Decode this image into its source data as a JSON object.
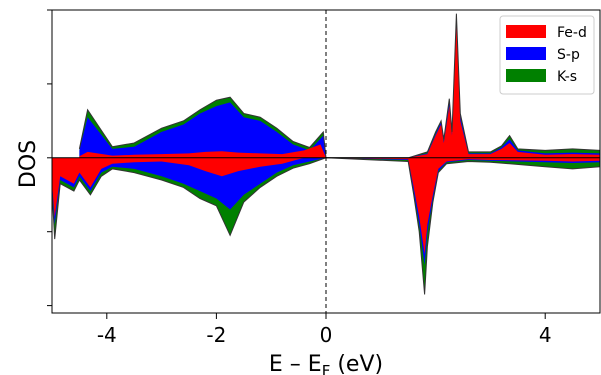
{
  "chart_data": {
    "type": "area",
    "xlabel": "E – E",
    "xlabel_sub": "F",
    "xlabel_unit": " (eV)",
    "ylabel": "DOS",
    "xlim": [
      -5,
      5
    ],
    "ylim": [
      -2.1,
      2.0
    ],
    "x_ticks": [
      -4,
      -2,
      0,
      4
    ],
    "x_tick_labels": [
      "-4",
      "-2",
      "0",
      "4"
    ],
    "y_ticks": [
      -2,
      -1,
      0,
      1,
      2
    ],
    "fermi_line_x": 0,
    "legend_position": "top-right",
    "colors": {
      "total": "#008000",
      "sp": "#0000ff",
      "fed": "#ff0000",
      "outline": "#333333"
    },
    "series": [
      {
        "name": "Fe-d",
        "color": "#ff0000",
        "up": [
          [
            -4.5,
            0.02
          ],
          [
            -4.35,
            0.08
          ],
          [
            -3.9,
            0.03
          ],
          [
            -3.5,
            0.04
          ],
          [
            -3.0,
            0.05
          ],
          [
            -2.5,
            0.06
          ],
          [
            -2.2,
            0.08
          ],
          [
            -1.9,
            0.09
          ],
          [
            -1.6,
            0.07
          ],
          [
            -1.2,
            0.06
          ],
          [
            -0.8,
            0.05
          ],
          [
            -0.4,
            0.1
          ],
          [
            -0.1,
            0.18
          ],
          [
            0.0,
            0.0
          ],
          [
            1.5,
            0.0
          ],
          [
            1.85,
            0.05
          ],
          [
            2.0,
            0.3
          ],
          [
            2.1,
            0.45
          ],
          [
            2.15,
            0.2
          ],
          [
            2.25,
            0.7
          ],
          [
            2.3,
            0.3
          ],
          [
            2.38,
            1.85
          ],
          [
            2.45,
            0.5
          ],
          [
            2.6,
            0.05
          ],
          [
            3.0,
            0.05
          ],
          [
            3.2,
            0.12
          ],
          [
            3.35,
            0.2
          ],
          [
            3.5,
            0.08
          ],
          [
            4.0,
            0.04
          ],
          [
            4.5,
            0.05
          ],
          [
            5.0,
            0.04
          ]
        ],
        "down": [
          [
            -5.0,
            -0.35
          ],
          [
            -4.95,
            -0.8
          ],
          [
            -4.85,
            -0.25
          ],
          [
            -4.6,
            -0.35
          ],
          [
            -4.5,
            -0.2
          ],
          [
            -4.3,
            -0.4
          ],
          [
            -4.1,
            -0.15
          ],
          [
            -3.9,
            -0.08
          ],
          [
            -3.5,
            -0.06
          ],
          [
            -3.0,
            -0.05
          ],
          [
            -2.5,
            -0.1
          ],
          [
            -2.2,
            -0.18
          ],
          [
            -1.9,
            -0.25
          ],
          [
            -1.6,
            -0.18
          ],
          [
            -1.2,
            -0.12
          ],
          [
            -0.8,
            -0.08
          ],
          [
            -0.4,
            0.0
          ],
          [
            0.0,
            0.0
          ],
          [
            1.5,
            -0.02
          ],
          [
            1.6,
            -0.4
          ],
          [
            1.7,
            -0.8
          ],
          [
            1.8,
            -1.3
          ],
          [
            1.85,
            -0.9
          ],
          [
            1.95,
            -0.5
          ],
          [
            2.05,
            -0.15
          ],
          [
            2.2,
            -0.05
          ],
          [
            2.6,
            -0.02
          ],
          [
            3.0,
            -0.03
          ],
          [
            4.0,
            -0.04
          ],
          [
            4.5,
            -0.05
          ],
          [
            5.0,
            -0.04
          ]
        ]
      },
      {
        "name": "S-p",
        "color": "#0000ff",
        "up": [
          [
            -4.5,
            0.1
          ],
          [
            -4.35,
            0.55
          ],
          [
            -3.9,
            0.12
          ],
          [
            -3.5,
            0.15
          ],
          [
            -3.0,
            0.35
          ],
          [
            -2.6,
            0.45
          ],
          [
            -2.3,
            0.6
          ],
          [
            -2.0,
            0.7
          ],
          [
            -1.75,
            0.75
          ],
          [
            -1.5,
            0.55
          ],
          [
            -1.2,
            0.5
          ],
          [
            -0.9,
            0.35
          ],
          [
            -0.6,
            0.18
          ],
          [
            -0.3,
            0.1
          ],
          [
            -0.05,
            0.3
          ],
          [
            0.0,
            0.0
          ],
          [
            1.5,
            0.0
          ],
          [
            1.85,
            0.06
          ],
          [
            2.0,
            0.32
          ],
          [
            2.1,
            0.48
          ],
          [
            2.15,
            0.22
          ],
          [
            2.25,
            0.75
          ],
          [
            2.3,
            0.32
          ],
          [
            2.38,
            1.9
          ],
          [
            2.45,
            0.55
          ],
          [
            2.6,
            0.06
          ],
          [
            3.0,
            0.06
          ],
          [
            3.2,
            0.14
          ],
          [
            3.35,
            0.25
          ],
          [
            3.5,
            0.1
          ],
          [
            4.0,
            0.06
          ],
          [
            4.5,
            0.07
          ],
          [
            5.0,
            0.06
          ]
        ],
        "down": [
          [
            -5.0,
            -0.4
          ],
          [
            -4.95,
            -0.9
          ],
          [
            -4.85,
            -0.3
          ],
          [
            -4.6,
            -0.4
          ],
          [
            -4.5,
            -0.25
          ],
          [
            -4.3,
            -0.45
          ],
          [
            -4.1,
            -0.2
          ],
          [
            -3.9,
            -0.12
          ],
          [
            -3.5,
            -0.15
          ],
          [
            -3.0,
            -0.25
          ],
          [
            -2.6,
            -0.35
          ],
          [
            -2.3,
            -0.45
          ],
          [
            -2.0,
            -0.55
          ],
          [
            -1.75,
            -0.7
          ],
          [
            -1.5,
            -0.5
          ],
          [
            -1.2,
            -0.35
          ],
          [
            -0.9,
            -0.2
          ],
          [
            -0.6,
            -0.1
          ],
          [
            -0.3,
            -0.05
          ],
          [
            0.0,
            0.0
          ],
          [
            1.5,
            -0.03
          ],
          [
            1.6,
            -0.45
          ],
          [
            1.7,
            -0.9
          ],
          [
            1.8,
            -1.45
          ],
          [
            1.85,
            -1.0
          ],
          [
            1.95,
            -0.55
          ],
          [
            2.05,
            -0.18
          ],
          [
            2.2,
            -0.06
          ],
          [
            2.6,
            -0.03
          ],
          [
            3.0,
            -0.04
          ],
          [
            4.0,
            -0.06
          ],
          [
            4.5,
            -0.07
          ],
          [
            5.0,
            -0.06
          ]
        ]
      },
      {
        "name": "K-s",
        "color": "#008000",
        "up": [
          [
            -4.5,
            0.12
          ],
          [
            -4.35,
            0.65
          ],
          [
            -3.9,
            0.15
          ],
          [
            -3.5,
            0.2
          ],
          [
            -3.0,
            0.4
          ],
          [
            -2.6,
            0.5
          ],
          [
            -2.3,
            0.65
          ],
          [
            -2.0,
            0.78
          ],
          [
            -1.75,
            0.82
          ],
          [
            -1.5,
            0.6
          ],
          [
            -1.2,
            0.55
          ],
          [
            -0.9,
            0.4
          ],
          [
            -0.6,
            0.22
          ],
          [
            -0.3,
            0.14
          ],
          [
            -0.05,
            0.35
          ],
          [
            0.0,
            0.0
          ],
          [
            1.5,
            0.0
          ],
          [
            1.85,
            0.08
          ],
          [
            2.0,
            0.35
          ],
          [
            2.1,
            0.5
          ],
          [
            2.15,
            0.25
          ],
          [
            2.25,
            0.8
          ],
          [
            2.3,
            0.35
          ],
          [
            2.38,
            1.95
          ],
          [
            2.45,
            0.6
          ],
          [
            2.6,
            0.08
          ],
          [
            3.0,
            0.08
          ],
          [
            3.2,
            0.16
          ],
          [
            3.35,
            0.3
          ],
          [
            3.5,
            0.12
          ],
          [
            4.0,
            0.1
          ],
          [
            4.5,
            0.12
          ],
          [
            5.0,
            0.1
          ]
        ],
        "down": [
          [
            -5.0,
            -0.45
          ],
          [
            -4.95,
            -1.1
          ],
          [
            -4.85,
            -0.35
          ],
          [
            -4.6,
            -0.45
          ],
          [
            -4.5,
            -0.3
          ],
          [
            -4.3,
            -0.5
          ],
          [
            -4.1,
            -0.25
          ],
          [
            -3.9,
            -0.15
          ],
          [
            -3.5,
            -0.2
          ],
          [
            -3.0,
            -0.3
          ],
          [
            -2.6,
            -0.4
          ],
          [
            -2.3,
            -0.55
          ],
          [
            -2.0,
            -0.65
          ],
          [
            -1.75,
            -1.05
          ],
          [
            -1.5,
            -0.6
          ],
          [
            -1.2,
            -0.4
          ],
          [
            -0.9,
            -0.25
          ],
          [
            -0.6,
            -0.14
          ],
          [
            -0.3,
            -0.08
          ],
          [
            0.0,
            0.0
          ],
          [
            1.5,
            -0.05
          ],
          [
            1.6,
            -0.5
          ],
          [
            1.7,
            -1.0
          ],
          [
            1.8,
            -1.85
          ],
          [
            1.85,
            -1.2
          ],
          [
            1.95,
            -0.6
          ],
          [
            2.05,
            -0.2
          ],
          [
            2.2,
            -0.08
          ],
          [
            2.6,
            -0.05
          ],
          [
            3.0,
            -0.06
          ],
          [
            4.0,
            -0.12
          ],
          [
            4.5,
            -0.15
          ],
          [
            5.0,
            -0.12
          ]
        ]
      }
    ]
  }
}
